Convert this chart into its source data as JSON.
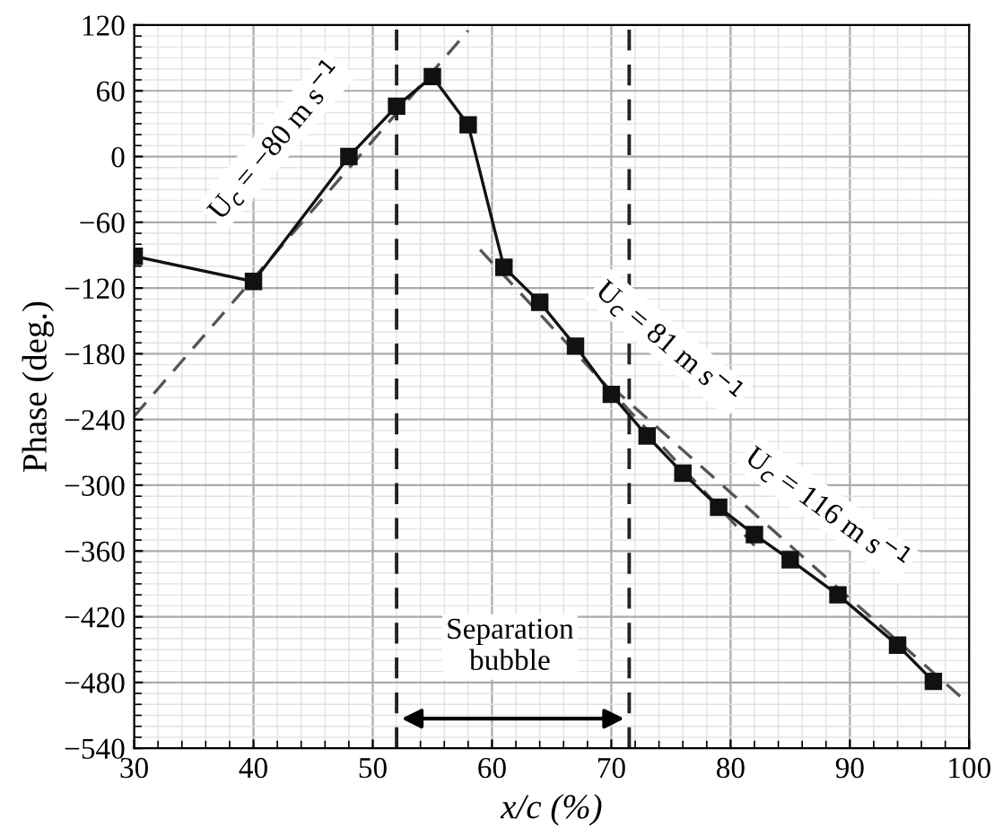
{
  "chart_data": {
    "type": "line",
    "xlabel": "x/c (%)",
    "ylabel": "Phase (deg.)",
    "xlim": [
      30,
      100
    ],
    "xticks": [
      30,
      40,
      50,
      60,
      70,
      80,
      90,
      100
    ],
    "ylim": [
      -540,
      120
    ],
    "yticks": [
      -540,
      -480,
      -420,
      -360,
      -300,
      -240,
      -180,
      -120,
      -60,
      0,
      60,
      120
    ],
    "grid": true,
    "marker": "square",
    "series": [
      {
        "color": "#111111",
        "x": [
          30,
          40,
          48,
          52,
          55,
          58,
          61,
          64,
          67,
          70,
          73,
          76,
          79,
          82,
          85,
          89,
          94,
          97
        ],
        "values": [
          -91,
          -114,
          0,
          46,
          73,
          29,
          -101,
          -133,
          -173,
          -217,
          -255,
          -289,
          -320,
          -345,
          -368,
          -400,
          -446,
          -479
        ]
      },
      {
        "color": "#555555",
        "type": "line",
        "marker": "none",
        "line_style": "dashed",
        "x": [
          30,
          58
        ],
        "values": [
          -237,
          115
        ]
      },
      {
        "color": "#555555",
        "type": "line",
        "marker": "none",
        "line_style": "dashed",
        "x": [
          59,
          82
        ],
        "values": [
          -85,
          -355
        ]
      },
      {
        "color": "#555555",
        "type": "line",
        "marker": "none",
        "line_style": "dashed",
        "x": [
          70,
          100
        ],
        "values": [
          -210,
          -500
        ]
      }
    ],
    "ref_lines": [
      {
        "axis": "x",
        "value": 52,
        "line_style": "dashed",
        "color": "#222222"
      },
      {
        "axis": "x",
        "value": 71.5,
        "line_style": "dashed",
        "color": "#222222"
      }
    ],
    "annotations": [
      "U$_{c}$ = −80 m s$^{−1}$",
      "U$_{c}$ = 81 m s$^{−1}$",
      "U$_{c}$ = 116 m s$^{−1}$",
      "Separation\nbubble"
    ]
  }
}
